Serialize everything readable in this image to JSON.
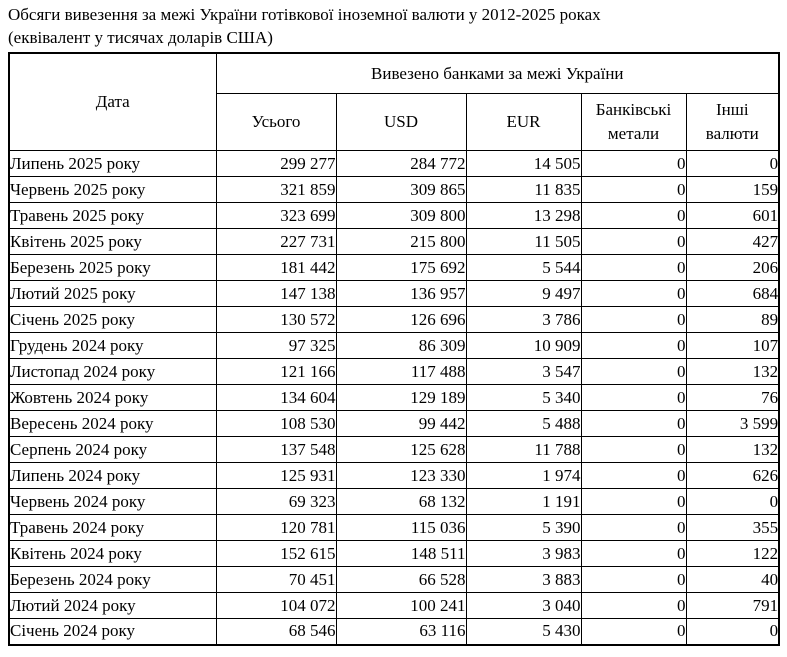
{
  "title": {
    "line1": "Обсяги вивезення за межі України готівкової іноземної валюти у 2012-2025 роках",
    "line2": "(еквівалент у тисячах доларів США)"
  },
  "table": {
    "header": {
      "date_column": "Дата",
      "group_label": "Вивезено банками за межі України",
      "columns": [
        "Усього",
        "USD",
        "EUR",
        "Банківські метали",
        "Інші валюти"
      ]
    },
    "rows": [
      [
        "Липень 2025 року",
        "299 277",
        "284 772",
        "14 505",
        "0",
        "0"
      ],
      [
        "Червень 2025 року",
        "321 859",
        "309 865",
        "11 835",
        "0",
        "159"
      ],
      [
        "Травень 2025 року",
        "323 699",
        "309 800",
        "13 298",
        "0",
        "601"
      ],
      [
        "Квітень 2025 року",
        "227 731",
        "215 800",
        "11 505",
        "0",
        "427"
      ],
      [
        "Березень 2025 року",
        "181 442",
        "175 692",
        "5 544",
        "0",
        "206"
      ],
      [
        "Лютий 2025 року",
        "147 138",
        "136 957",
        "9 497",
        "0",
        "684"
      ],
      [
        "Січень 2025 року",
        "130 572",
        "126 696",
        "3 786",
        "0",
        "89"
      ],
      [
        "Грудень 2024 року",
        "97 325",
        "86 309",
        "10 909",
        "0",
        "107"
      ],
      [
        "Листопад 2024 року",
        "121 166",
        "117 488",
        "3 547",
        "0",
        "132"
      ],
      [
        "Жовтень 2024 року",
        "134 604",
        "129 189",
        "5 340",
        "0",
        "76"
      ],
      [
        "Вересень 2024 року",
        "108 530",
        "99 442",
        "5 488",
        "0",
        "3 599"
      ],
      [
        "Серпень 2024 року",
        "137 548",
        "125 628",
        "11 788",
        "0",
        "132"
      ],
      [
        "Липень 2024 року",
        "125 931",
        "123 330",
        "1 974",
        "0",
        "626"
      ],
      [
        "Червень 2024 року",
        "69 323",
        "68 132",
        "1 191",
        "0",
        "0"
      ],
      [
        "Травень 2024 року",
        "120 781",
        "115 036",
        "5 390",
        "0",
        "355"
      ],
      [
        "Квітень 2024 року",
        "152 615",
        "148 511",
        "3 983",
        "0",
        "122"
      ],
      [
        "Березень 2024 року",
        "70 451",
        "66 528",
        "3 883",
        "0",
        "40"
      ],
      [
        "Лютий 2024 року",
        "104 072",
        "100 241",
        "3 040",
        "0",
        "791"
      ],
      [
        "Січень 2024 року",
        "68 546",
        "63 116",
        "5 430",
        "0",
        "0"
      ]
    ]
  },
  "colors": {
    "text": "#000000",
    "border": "#000000",
    "background": "#ffffff"
  }
}
